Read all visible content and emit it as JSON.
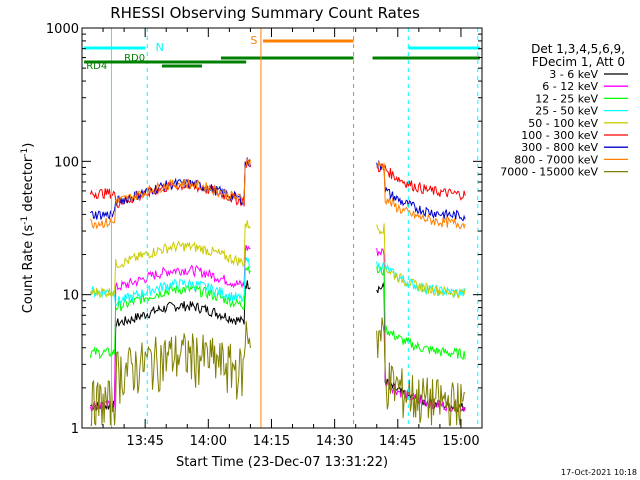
{
  "chart_data": {
    "type": "line",
    "title": "RHESSI Observing Summary Count Rates",
    "xlabel": "Start Time (23-Dec-07 13:31:22)",
    "ylabel_main": "Count Rate (s",
    "ylabel_sup1": "-1",
    "ylabel_mid": " detector",
    "ylabel_sup2": "-1",
    "ylabel_end": ")",
    "y_scale": "log",
    "ylim": [
      1,
      1000
    ],
    "xlim_minutes_since_13_30": [
      0,
      95
    ],
    "x_ticks": [
      {
        "label": "13:45",
        "min": 15
      },
      {
        "label": "14:00",
        "min": 30
      },
      {
        "label": "14:15",
        "min": 45
      },
      {
        "label": "14:30",
        "min": 60
      },
      {
        "label": "14:45",
        "min": 75
      },
      {
        "label": "15:00",
        "min": 90
      }
    ],
    "y_ticks": [
      {
        "label": "1",
        "value": 1
      },
      {
        "label": "10",
        "value": 10
      },
      {
        "label": "100",
        "value": 100
      },
      {
        "label": "1000",
        "value": 1000
      }
    ],
    "legend_header": [
      "Det 1,3,4,5,6,9,",
      "FDecim 1, Att 0"
    ],
    "series": [
      {
        "name": "3 - 6 keV",
        "color": "#000000",
        "base": 7.5,
        "gap_floor": 1.4
      },
      {
        "name": "6 - 12 keV",
        "color": "#ff00ff",
        "base": 14,
        "gap_floor": 1.4
      },
      {
        "name": "12 - 25 keV",
        "color": "#00ff00",
        "base": 10,
        "gap_floor": 3.5
      },
      {
        "name": "25 - 50 keV",
        "color": "#00ffff",
        "base": 11,
        "gap_floor": 10
      },
      {
        "name": "50 - 100 keV",
        "color": "#cccc00",
        "base": 21,
        "gap_floor": 10
      },
      {
        "name": "100 - 300 keV",
        "color": "#ff0000",
        "base": 60,
        "gap_floor": 55
      },
      {
        "name": "300 - 800 keV",
        "color": "#0000cc",
        "base": 62,
        "gap_floor": 38
      },
      {
        "name": "800 - 7000 keV",
        "color": "#ff8000",
        "base": 62,
        "gap_floor": 33
      },
      {
        "name": "7000 - 15000 keV",
        "color": "#808000",
        "base": 3.3,
        "gap_floor": 1.5
      }
    ],
    "flags": [
      {
        "label": "N",
        "color": "#00ffff"
      },
      {
        "label": "RD0",
        "color": "#008000"
      },
      {
        "label": "RD4",
        "color": "#008000"
      },
      {
        "label": "S",
        "color": "#ff8000"
      }
    ],
    "footer_date": "17-Oct-2021 10:18"
  }
}
